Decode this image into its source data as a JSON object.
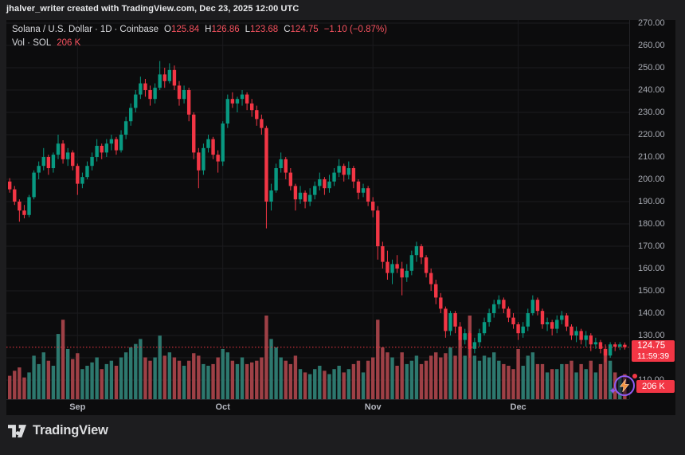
{
  "topbar": {
    "attribution": "jhalver_writer created with TradingView.com, Dec 23, 2025 12:00 UTC"
  },
  "legend": {
    "symbol": "Solana / U.S. Dollar",
    "sep1": "·",
    "interval": "1D",
    "sep2": "·",
    "exchange": "Coinbase",
    "o_label": "O",
    "o_value": "125.84",
    "h_label": "H",
    "h_value": "126.86",
    "l_label": "L",
    "l_value": "123.68",
    "c_label": "C",
    "c_value": "124.75",
    "change": "−1.10 (−0.87%)",
    "vol_label": "Vol · SOL",
    "vol_value": "206 K"
  },
  "price_axis": {
    "ticks": [
      "270.00",
      "260.00",
      "250.00",
      "240.00",
      "230.00",
      "220.00",
      "210.00",
      "200.00",
      "190.00",
      "180.00",
      "170.00",
      "160.00",
      "150.00",
      "140.00",
      "130.00",
      "110.00"
    ],
    "last_price": "124.75",
    "countdown": "11:59:39",
    "volume_value": "206 K"
  },
  "footer": {
    "brand": "TradingView"
  },
  "colors": {
    "up": "#089981",
    "down": "#f23645",
    "vol_up": "#2d786e",
    "vol_down": "#9e4046",
    "grid": "#1b1b1e",
    "price_line": "#f23645",
    "panel_bg": "#0c0c0d",
    "page_bg": "#1d1d1f",
    "purple": "#8f5bf0"
  },
  "chart_data": {
    "type": "candlestick+volume",
    "title": "Solana / U.S. Dollar",
    "interval": "1D",
    "exchange": "Coinbase",
    "price_range": [
      110,
      270
    ],
    "grid_step": 10,
    "months": [
      {
        "label": "Sep",
        "index": 14
      },
      {
        "label": "Oct",
        "index": 44
      },
      {
        "label": "Nov",
        "index": 75
      },
      {
        "label": "Dec",
        "index": 105
      }
    ],
    "last": {
      "open": 125.84,
      "high": 126.86,
      "low": 123.68,
      "close": 124.75,
      "change": -1.1,
      "change_pct": -0.87,
      "volume": "206 K"
    },
    "candles": [
      [
        199,
        200.5,
        194,
        195.5,
        0.28
      ],
      [
        195.5,
        197,
        188.5,
        190,
        0.34
      ],
      [
        190,
        191,
        181,
        186,
        0.38
      ],
      [
        186,
        188.5,
        182.5,
        184,
        0.26
      ],
      [
        184,
        193,
        183,
        192,
        0.32
      ],
      [
        192,
        204,
        191,
        203,
        0.52
      ],
      [
        203,
        208,
        200,
        206,
        0.42
      ],
      [
        206,
        214,
        204,
        210,
        0.56
      ],
      [
        210,
        211,
        202,
        205,
        0.46
      ],
      [
        205,
        212,
        203,
        211,
        0.4
      ],
      [
        211,
        220,
        209,
        216,
        0.78
      ],
      [
        216,
        217.5,
        207,
        209,
        0.95
      ],
      [
        209,
        214,
        206,
        212,
        0.6
      ],
      [
        212,
        213,
        204,
        206,
        0.48
      ],
      [
        206,
        207,
        193,
        198,
        0.55
      ],
      [
        198,
        203,
        196,
        201,
        0.36
      ],
      [
        201,
        208,
        200,
        206,
        0.4
      ],
      [
        206,
        212,
        204,
        210,
        0.44
      ],
      [
        210,
        218,
        208,
        215,
        0.5
      ],
      [
        215,
        216,
        209,
        212,
        0.36
      ],
      [
        212,
        218,
        210,
        216,
        0.42
      ],
      [
        216,
        220,
        213,
        218,
        0.46
      ],
      [
        218,
        219,
        211,
        213,
        0.4
      ],
      [
        213,
        222,
        212,
        220,
        0.5
      ],
      [
        220,
        228,
        218,
        226,
        0.56
      ],
      [
        226,
        234,
        224,
        232,
        0.62
      ],
      [
        232,
        240,
        230,
        238,
        0.66
      ],
      [
        238,
        246,
        236,
        243,
        0.72
      ],
      [
        243,
        245,
        237,
        240,
        0.5
      ],
      [
        240,
        242,
        233,
        236,
        0.46
      ],
      [
        236,
        243,
        234,
        241,
        0.5
      ],
      [
        241,
        253,
        240,
        247,
        0.76
      ],
      [
        247,
        250,
        241,
        244,
        0.52
      ],
      [
        244,
        252,
        243,
        249,
        0.56
      ],
      [
        249,
        251,
        240,
        242,
        0.5
      ],
      [
        242,
        244,
        233,
        236,
        0.46
      ],
      [
        236,
        242,
        234,
        240,
        0.4
      ],
      [
        240,
        241,
        226,
        229,
        0.46
      ],
      [
        229,
        230,
        209,
        212,
        0.55
      ],
      [
        212,
        214,
        196,
        204,
        0.52
      ],
      [
        204,
        216,
        202,
        214,
        0.42
      ],
      [
        214,
        220,
        212,
        218,
        0.4
      ],
      [
        218,
        219,
        209,
        211,
        0.42
      ],
      [
        211,
        213,
        203,
        208,
        0.5
      ],
      [
        208,
        226,
        206,
        225,
        0.6
      ],
      [
        225,
        238,
        223,
        236,
        0.56
      ],
      [
        236,
        239,
        232,
        234,
        0.46
      ],
      [
        234,
        237,
        230,
        236,
        0.42
      ],
      [
        236,
        240,
        233,
        238,
        0.5
      ],
      [
        238,
        239,
        231,
        234,
        0.42
      ],
      [
        234,
        236,
        228,
        231,
        0.44
      ],
      [
        231,
        233,
        224,
        227,
        0.46
      ],
      [
        227,
        229,
        220,
        223,
        0.5
      ],
      [
        223,
        224,
        178,
        190,
        1.0
      ],
      [
        190,
        198,
        186,
        195,
        0.72
      ],
      [
        195,
        207,
        194,
        205,
        0.62
      ],
      [
        205,
        212,
        203,
        209,
        0.5
      ],
      [
        209,
        210,
        200,
        203,
        0.46
      ],
      [
        203,
        205,
        195,
        197,
        0.42
      ],
      [
        197,
        198,
        186,
        191,
        0.52
      ],
      [
        191,
        197,
        189,
        194,
        0.36
      ],
      [
        194,
        195,
        187,
        190,
        0.32
      ],
      [
        190,
        196,
        188,
        193,
        0.3
      ],
      [
        193,
        199,
        191,
        197,
        0.36
      ],
      [
        197,
        203,
        195,
        200,
        0.4
      ],
      [
        200,
        201,
        193,
        196,
        0.34
      ],
      [
        196,
        202,
        194,
        199,
        0.3
      ],
      [
        199,
        205,
        197,
        203,
        0.36
      ],
      [
        203,
        209,
        201,
        206,
        0.4
      ],
      [
        206,
        207,
        199,
        202,
        0.32
      ],
      [
        202,
        208,
        200,
        205,
        0.36
      ],
      [
        205,
        206,
        196,
        199,
        0.42
      ],
      [
        199,
        200,
        191,
        194,
        0.46
      ],
      [
        194,
        198,
        192,
        196,
        0.32
      ],
      [
        196,
        197,
        188,
        190,
        0.46
      ],
      [
        190,
        192,
        183,
        186,
        0.5
      ],
      [
        186,
        188,
        164,
        170,
        0.95
      ],
      [
        170,
        172,
        160,
        163,
        0.62
      ],
      [
        163,
        168,
        155,
        158,
        0.56
      ],
      [
        158,
        164,
        153,
        162,
        0.5
      ],
      [
        162,
        166,
        158,
        160,
        0.4
      ],
      [
        160,
        163,
        148,
        156,
        0.56
      ],
      [
        156,
        162,
        154,
        159,
        0.42
      ],
      [
        159,
        168,
        157,
        166,
        0.46
      ],
      [
        166,
        172,
        163,
        170,
        0.52
      ],
      [
        170,
        171,
        162,
        165,
        0.42
      ],
      [
        165,
        166,
        156,
        158,
        0.46
      ],
      [
        158,
        160,
        150,
        153,
        0.52
      ],
      [
        153,
        155,
        144,
        147,
        0.56
      ],
      [
        147,
        149,
        140,
        142,
        0.5
      ],
      [
        142,
        143,
        129,
        132,
        0.55
      ],
      [
        132,
        141,
        130,
        140,
        0.62
      ],
      [
        140,
        141,
        131,
        134,
        0.52
      ],
      [
        134,
        136,
        125,
        128,
        0.72
      ],
      [
        128,
        133,
        126,
        131,
        0.52
      ],
      [
        131,
        132,
        120,
        124,
        1.0
      ],
      [
        124,
        129,
        122,
        127,
        0.52
      ],
      [
        127,
        133,
        125,
        131,
        0.46
      ],
      [
        131,
        138,
        130,
        136,
        0.52
      ],
      [
        136,
        142,
        134,
        140,
        0.5
      ],
      [
        140,
        146,
        138,
        144,
        0.56
      ],
      [
        144,
        148,
        142,
        146,
        0.46
      ],
      [
        146,
        147,
        140,
        142,
        0.42
      ],
      [
        142,
        143,
        136,
        138,
        0.4
      ],
      [
        138,
        140,
        133,
        135,
        0.36
      ],
      [
        135,
        136,
        128,
        131,
        0.6
      ],
      [
        131,
        136,
        129,
        134,
        0.4
      ],
      [
        134,
        142,
        132,
        140,
        0.52
      ],
      [
        140,
        148,
        139,
        146,
        0.56
      ],
      [
        146,
        147,
        139,
        141,
        0.42
      ],
      [
        141,
        142,
        133,
        135,
        0.42
      ],
      [
        135,
        138,
        132,
        136,
        0.32
      ],
      [
        136,
        137,
        130,
        133,
        0.36
      ],
      [
        133,
        139,
        131,
        137,
        0.36
      ],
      [
        137,
        141,
        135,
        139,
        0.42
      ],
      [
        139,
        140,
        132,
        134,
        0.42
      ],
      [
        134,
        135,
        128,
        130,
        0.46
      ],
      [
        130,
        134,
        127,
        132,
        0.32
      ],
      [
        132,
        133,
        126,
        128,
        0.42
      ],
      [
        128,
        132,
        125,
        130,
        0.36
      ],
      [
        130,
        131,
        123,
        126,
        0.46
      ],
      [
        126,
        129,
        124,
        127,
        0.32
      ],
      [
        127,
        128,
        122,
        124,
        0.42
      ],
      [
        124,
        126,
        118,
        121,
        0.6
      ],
      [
        121,
        127,
        120,
        126,
        0.46
      ],
      [
        126,
        127,
        123,
        125,
        0.32
      ],
      [
        125,
        127,
        123.5,
        126,
        0.26
      ],
      [
        125.84,
        126.86,
        123.68,
        124.75,
        0.3
      ]
    ]
  }
}
